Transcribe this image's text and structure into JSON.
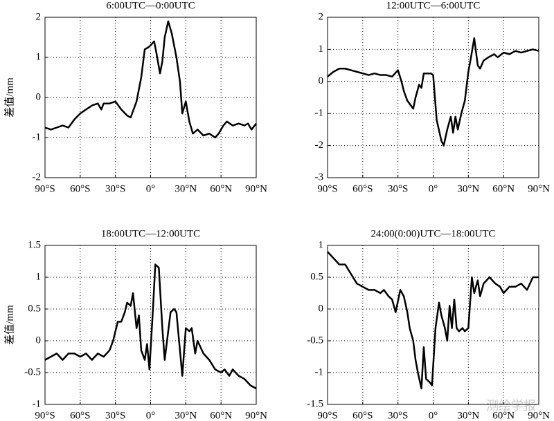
{
  "chart_data": [
    {
      "type": "line",
      "title": "6:00UTC—0:00UTC",
      "y_label": "差值/mm",
      "color": "#000000",
      "grid": true,
      "x": [
        -90,
        -85,
        -80,
        -75,
        -70,
        -65,
        -60,
        -55,
        -50,
        -45,
        -42,
        -40,
        -35,
        -30,
        -25,
        -20,
        -17,
        -12,
        -8,
        -5,
        -2,
        0,
        3,
        5,
        8,
        10,
        12,
        15,
        18,
        22,
        25,
        27,
        30,
        33,
        36,
        40,
        45,
        50,
        55,
        58,
        62,
        65,
        70,
        75,
        80,
        83,
        86,
        90
      ],
      "values": [
        -0.75,
        -0.8,
        -0.75,
        -0.7,
        -0.75,
        -0.55,
        -0.4,
        -0.3,
        -0.2,
        -0.15,
        -0.3,
        -0.15,
        -0.15,
        -0.1,
        -0.3,
        -0.45,
        -0.5,
        -0.1,
        0.5,
        1.2,
        1.25,
        1.3,
        1.4,
        1.1,
        0.6,
        0.9,
        1.5,
        1.9,
        1.6,
        1.0,
        0.4,
        -0.4,
        -0.1,
        -0.6,
        -0.9,
        -0.8,
        -0.95,
        -0.9,
        -1.0,
        -0.9,
        -0.7,
        -0.6,
        -0.7,
        -0.65,
        -0.7,
        -0.65,
        -0.8,
        -0.65
      ],
      "xlim": [
        -90,
        90
      ],
      "ylim": [
        -2,
        2
      ],
      "xticks": [
        {
          "value": -90,
          "label": "90°S"
        },
        {
          "value": -60,
          "label": "60°S"
        },
        {
          "value": -30,
          "label": "30°S"
        },
        {
          "value": 0,
          "label": "0°"
        },
        {
          "value": 30,
          "label": "30°N"
        },
        {
          "value": 60,
          "label": "60°N"
        },
        {
          "value": 90,
          "label": "90°N"
        }
      ],
      "yticks": [
        -2,
        -1,
        0,
        1,
        2
      ]
    },
    {
      "type": "line",
      "title": "12:00UTC—6:00UTC",
      "color": "#000000",
      "grid": true,
      "x": [
        -90,
        -85,
        -80,
        -75,
        -70,
        -65,
        -60,
        -55,
        -50,
        -45,
        -40,
        -35,
        -30,
        -27,
        -25,
        -22,
        -17,
        -15,
        -12,
        -10,
        -8,
        -2,
        0,
        3,
        7,
        9,
        12,
        15,
        17,
        19,
        21,
        24,
        27,
        30,
        32,
        35,
        38,
        40,
        43,
        47,
        52,
        55,
        60,
        65,
        70,
        75,
        80,
        85,
        90
      ],
      "values": [
        0.15,
        0.3,
        0.4,
        0.4,
        0.35,
        0.3,
        0.25,
        0.2,
        0.25,
        0.2,
        0.2,
        0.15,
        0.35,
        0.0,
        -0.3,
        -0.6,
        -0.85,
        -0.5,
        -0.1,
        -0.2,
        0.25,
        0.25,
        0.2,
        -1.2,
        -1.85,
        -2.0,
        -1.5,
        -1.1,
        -1.6,
        -1.1,
        -1.5,
        -1.0,
        -0.6,
        0.3,
        0.7,
        1.35,
        0.5,
        0.4,
        0.65,
        0.75,
        0.85,
        0.75,
        0.9,
        0.85,
        0.95,
        0.9,
        0.95,
        1.0,
        0.95
      ],
      "xlim": [
        -90,
        90
      ],
      "ylim": [
        -3,
        2
      ],
      "xticks": [
        {
          "value": -90,
          "label": "90°S"
        },
        {
          "value": -60,
          "label": "60°S"
        },
        {
          "value": -30,
          "label": "30°S"
        },
        {
          "value": 0,
          "label": "0°"
        },
        {
          "value": 30,
          "label": "30°N"
        },
        {
          "value": 60,
          "label": "60°N"
        },
        {
          "value": 90,
          "label": "90°N"
        }
      ],
      "yticks": [
        -3,
        -2,
        -1,
        0,
        1,
        2
      ]
    },
    {
      "type": "line",
      "title": "18:00UTC—12:00UTC",
      "y_label": "差值/mm",
      "color": "#000000",
      "grid": true,
      "x": [
        -90,
        -85,
        -80,
        -75,
        -70,
        -65,
        -60,
        -55,
        -50,
        -45,
        -40,
        -35,
        -32,
        -28,
        -25,
        -22,
        -20,
        -17,
        -15,
        -12,
        -10,
        -8,
        -5,
        -3,
        -1,
        2,
        4,
        7,
        10,
        12,
        14,
        17,
        20,
        22,
        25,
        27,
        30,
        33,
        35,
        38,
        40,
        45,
        50,
        55,
        60,
        63,
        67,
        70,
        75,
        80,
        85,
        90
      ],
      "values": [
        -0.3,
        -0.25,
        -0.2,
        -0.3,
        -0.2,
        -0.2,
        -0.25,
        -0.2,
        -0.3,
        -0.2,
        -0.25,
        -0.15,
        0.0,
        0.3,
        0.3,
        0.45,
        0.6,
        0.55,
        0.75,
        0.2,
        0.4,
        -0.15,
        -0.3,
        -0.05,
        -0.45,
        0.5,
        1.2,
        1.15,
        0.2,
        -0.3,
        0.0,
        0.45,
        0.5,
        0.45,
        -0.15,
        -0.55,
        0.2,
        0.15,
        0.2,
        -0.2,
        0.0,
        -0.2,
        -0.3,
        -0.45,
        -0.5,
        -0.45,
        -0.55,
        -0.45,
        -0.55,
        -0.6,
        -0.7,
        -0.75
      ],
      "xlim": [
        -90,
        90
      ],
      "ylim": [
        -1,
        1.5
      ],
      "xticks": [
        {
          "value": -90,
          "label": "90°S"
        },
        {
          "value": -60,
          "label": "60°S"
        },
        {
          "value": -30,
          "label": "30°S"
        },
        {
          "value": 0,
          "label": "0°"
        },
        {
          "value": 30,
          "label": "30°N"
        },
        {
          "value": 60,
          "label": "60°N"
        },
        {
          "value": 90,
          "label": "90°N"
        }
      ],
      "yticks": [
        -1,
        -0.5,
        0,
        0.5,
        1,
        1.5
      ]
    },
    {
      "type": "line",
      "title": "24:00(0:00)UTC—18:00UTC",
      "color": "#000000",
      "grid": true,
      "x": [
        -90,
        -85,
        -80,
        -75,
        -70,
        -65,
        -60,
        -55,
        -50,
        -45,
        -42,
        -38,
        -35,
        -32,
        -28,
        -25,
        -22,
        -20,
        -17,
        -15,
        -13,
        -10,
        -8,
        -6,
        -3,
        -1,
        2,
        5,
        7,
        10,
        12,
        14,
        16,
        18,
        20,
        22,
        25,
        27,
        30,
        33,
        35,
        38,
        40,
        43,
        48,
        53,
        57,
        60,
        65,
        70,
        75,
        80,
        85,
        90
      ],
      "values": [
        0.9,
        0.8,
        0.7,
        0.7,
        0.55,
        0.4,
        0.35,
        0.3,
        0.3,
        0.25,
        0.3,
        0.2,
        0.15,
        -0.05,
        0.3,
        0.2,
        -0.05,
        -0.3,
        -0.5,
        -0.8,
        -1.0,
        -1.25,
        -0.6,
        -1.1,
        -1.15,
        -1.2,
        -0.3,
        0.1,
        -0.1,
        -0.3,
        -0.5,
        0.05,
        -0.3,
        0.15,
        -0.3,
        -0.35,
        -0.3,
        -0.35,
        -0.3,
        0.5,
        0.25,
        0.45,
        0.2,
        0.4,
        0.5,
        0.4,
        0.35,
        0.25,
        0.35,
        0.35,
        0.4,
        0.3,
        0.5,
        0.5
      ],
      "xlim": [
        -90,
        90
      ],
      "ylim": [
        -1.5,
        1
      ],
      "xticks": [
        {
          "value": -90,
          "label": "90°S"
        },
        {
          "value": -60,
          "label": "60°S"
        },
        {
          "value": -30,
          "label": "30°S"
        },
        {
          "value": 0,
          "label": "0°"
        },
        {
          "value": 30,
          "label": "30°N"
        },
        {
          "value": 60,
          "label": "60°N"
        },
        {
          "value": 90,
          "label": "90°N"
        }
      ],
      "yticks": [
        -1.5,
        -1,
        -0.5,
        0,
        0.5,
        1
      ]
    }
  ],
  "watermark": "测绘学报"
}
